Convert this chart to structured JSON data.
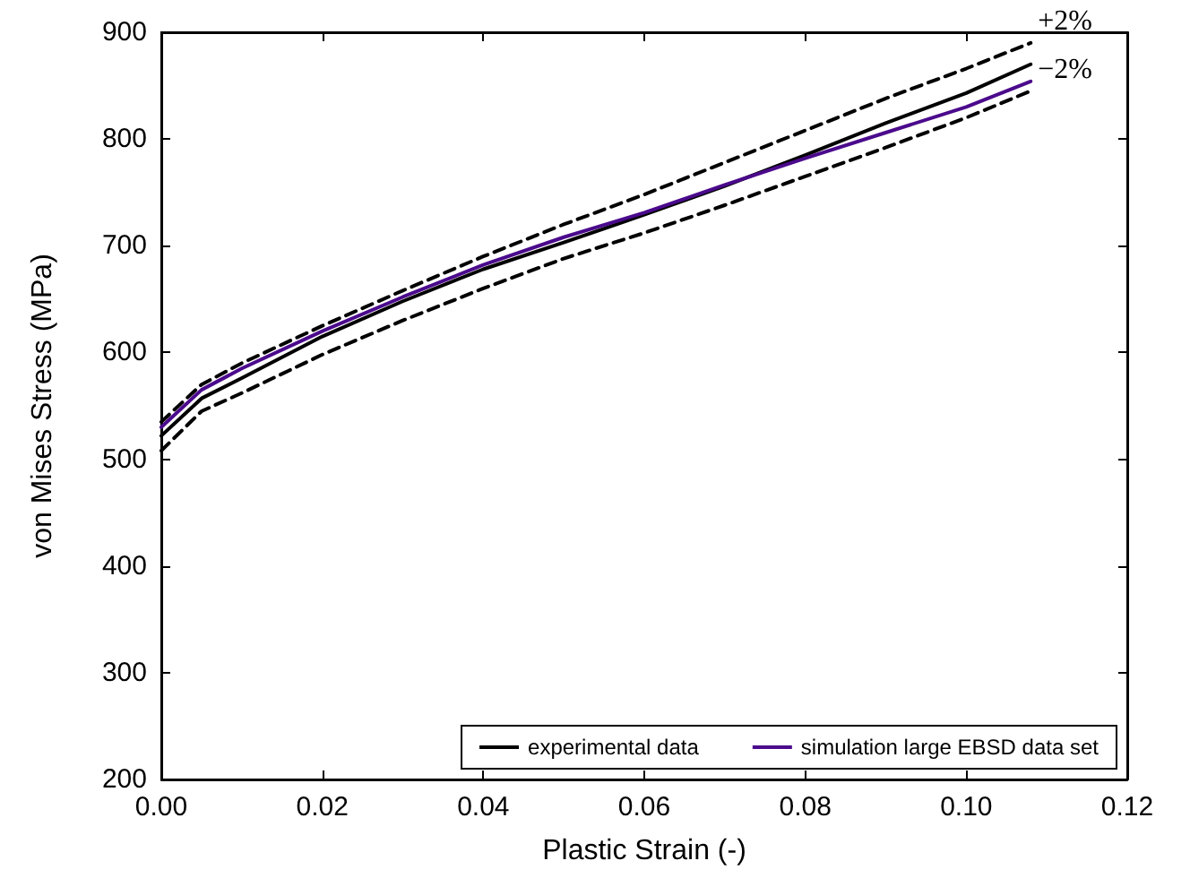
{
  "chart_data": {
    "type": "line",
    "xlabel": "Plastic Strain (-)",
    "ylabel": "von Mises Stress (MPa)",
    "xlim": [
      0,
      0.12
    ],
    "xticks": [
      {
        "value": 0,
        "label": "0.00"
      },
      0.02,
      0.04,
      0.06,
      0.08,
      {
        "value": 0.1,
        "label": "0.10"
      },
      0.12
    ],
    "ylim": [
      200,
      900
    ],
    "yticks": [
      200,
      300,
      400,
      500,
      600,
      700,
      800,
      900
    ],
    "grid": false,
    "legend": "bottom right",
    "marker": "none",
    "annotations": [
      {
        "text": "+2%",
        "x": 0.108,
        "y": 890
      },
      {
        "text": "−2%",
        "x": 0.108,
        "y": 845
      }
    ],
    "series": [
      {
        "name": "experimental data",
        "color": "#000000",
        "line_style": "solid",
        "x": [
          0,
          0.005,
          0.01,
          0.02,
          0.03,
          0.04,
          0.05,
          0.06,
          0.07,
          0.08,
          0.09,
          0.1,
          0.108
        ],
        "values": [
          522,
          557,
          576,
          615,
          648,
          678,
          703,
          729,
          756,
          785,
          815,
          843,
          870
        ]
      },
      {
        "name": "simulation large EBSD data set",
        "color": "#4b0a8c",
        "line_style": "solid",
        "x": [
          0,
          0.005,
          0.01,
          0.02,
          0.03,
          0.04,
          0.05,
          0.06,
          0.07,
          0.08,
          0.09,
          0.1,
          0.108
        ],
        "values": [
          530,
          565,
          585,
          620,
          652,
          682,
          708,
          731,
          757,
          782,
          806,
          830,
          854
        ]
      },
      {
        "color": "#000000",
        "line_style": "dashed",
        "x": [
          0,
          0.005,
          0.01,
          0.02,
          0.03,
          0.04,
          0.05,
          0.06,
          0.07,
          0.08,
          0.09,
          0.1,
          0.108
        ],
        "values": [
          535,
          570,
          590,
          625,
          658,
          690,
          720,
          748,
          778,
          808,
          838,
          866,
          890
        ]
      },
      {
        "color": "#000000",
        "line_style": "dashed",
        "x": [
          0,
          0.005,
          0.01,
          0.02,
          0.03,
          0.04,
          0.05,
          0.06,
          0.07,
          0.08,
          0.09,
          0.1,
          0.108
        ],
        "values": [
          508,
          545,
          562,
          598,
          630,
          660,
          688,
          712,
          738,
          765,
          792,
          820,
          845
        ]
      }
    ]
  }
}
